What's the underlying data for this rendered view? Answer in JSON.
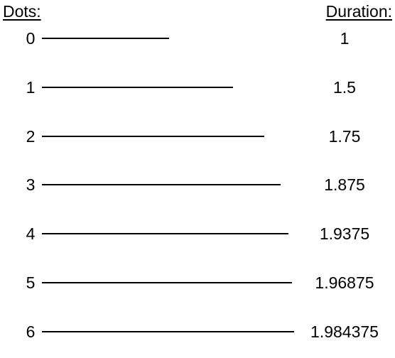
{
  "headers": {
    "dots": "Dots:",
    "duration": "Duration:"
  },
  "rows": [
    {
      "dots": "0",
      "duration": "1",
      "value": 1
    },
    {
      "dots": "1",
      "duration": "1.5",
      "value": 1.5
    },
    {
      "dots": "2",
      "duration": "1.75",
      "value": 1.75
    },
    {
      "dots": "3",
      "duration": "1.875",
      "value": 1.875
    },
    {
      "dots": "4",
      "duration": "1.9375",
      "value": 1.9375
    },
    {
      "dots": "5",
      "duration": "1.96875",
      "value": 1.96875
    },
    {
      "dots": "6",
      "duration": "1.984375",
      "value": 1.984375
    }
  ]
}
